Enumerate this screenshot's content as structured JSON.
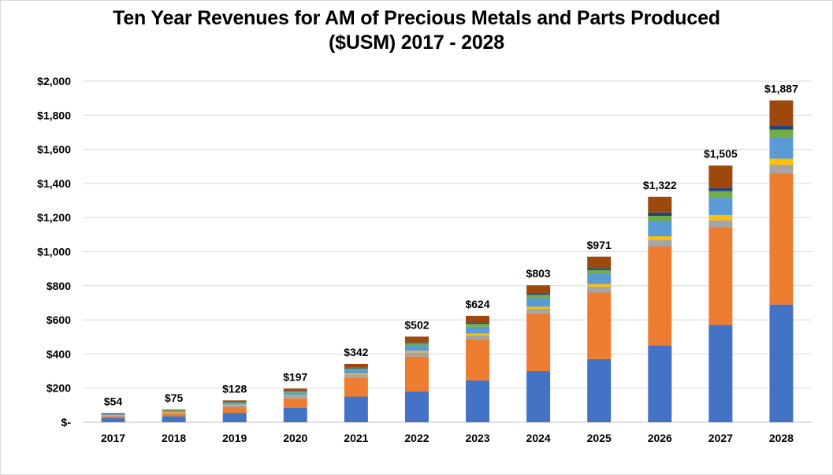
{
  "chart_data": {
    "type": "bar",
    "stacked": true,
    "title_line1": "Ten Year Revenues for AM of Precious Metals and Parts Produced",
    "title_line2": "($USM) 2017 - 2028",
    "xlabel": "",
    "ylabel": "",
    "ylim": [
      0,
      2000
    ],
    "y_ticks": [
      "$-",
      "$200",
      "$400",
      "$600",
      "$800",
      "$1,000",
      "$1,200",
      "$1,400",
      "$1,600",
      "$1,800",
      "$2,000"
    ],
    "y_tick_values": [
      0,
      200,
      400,
      600,
      800,
      1000,
      1200,
      1400,
      1600,
      1800,
      2000
    ],
    "grid": true,
    "legend": "none",
    "categories": [
      "2017",
      "2018",
      "2019",
      "2020",
      "2021",
      "2022",
      "2023",
      "2024",
      "2025",
      "2026",
      "2027",
      "2028"
    ],
    "totals": [
      54,
      75,
      128,
      197,
      342,
      502,
      624,
      803,
      971,
      1322,
      1505,
      1887
    ],
    "total_labels": [
      "$54",
      "$75",
      "$128",
      "$197",
      "$342",
      "$502",
      "$624",
      "$803",
      "$971",
      "$1,322",
      "$1,505",
      "$1,887"
    ],
    "series": [
      {
        "color": "#4472c4",
        "values": [
          25,
          35,
          55,
          85,
          150,
          180,
          245,
          300,
          370,
          450,
          570,
          690
        ]
      },
      {
        "color": "#ed7d31",
        "values": [
          10,
          17,
          35,
          55,
          110,
          205,
          240,
          335,
          390,
          580,
          575,
          770
        ]
      },
      {
        "color": "#a5a5a5",
        "values": [
          5,
          6,
          10,
          15,
          20,
          25,
          25,
          30,
          35,
          40,
          40,
          50
        ]
      },
      {
        "color": "#ffc000",
        "values": [
          1,
          2,
          3,
          4,
          5,
          8,
          10,
          12,
          15,
          20,
          30,
          35
        ]
      },
      {
        "color": "#5b9bd5",
        "values": [
          5,
          6,
          10,
          15,
          20,
          30,
          40,
          50,
          60,
          90,
          100,
          125
        ]
      },
      {
        "color": "#70ad47",
        "values": [
          2,
          3,
          5,
          8,
          10,
          15,
          17,
          20,
          22,
          30,
          40,
          45
        ]
      },
      {
        "color": "#264478",
        "values": [
          1,
          1,
          2,
          3,
          5,
          5,
          7,
          10,
          12,
          20,
          20,
          25
        ]
      },
      {
        "color": "#9e480e",
        "values": [
          5,
          5,
          8,
          12,
          22,
          34,
          40,
          46,
          67,
          92,
          130,
          147
        ]
      }
    ]
  }
}
